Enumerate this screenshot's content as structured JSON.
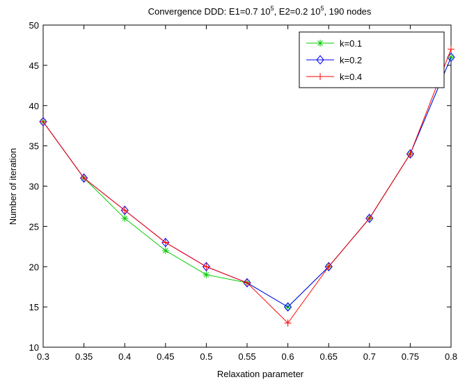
{
  "chart_data": {
    "type": "line",
    "title": {
      "prefix": "Convergence DDD: E1=0.7 10",
      "sup1": "5",
      "middle": ", E2=0.2 10",
      "sup2": "5",
      "suffix": ", 190 nodes"
    },
    "xlabel": "Relaxation parameter",
    "ylabel": "Number of iteration",
    "xlim": [
      0.3,
      0.8
    ],
    "ylim": [
      10,
      50
    ],
    "xticks": [
      0.3,
      0.35,
      0.4,
      0.45,
      0.5,
      0.55,
      0.6,
      0.65,
      0.7,
      0.75,
      0.8
    ],
    "xtick_labels": [
      "0.3",
      "0.35",
      "0.4",
      "0.45",
      "0.5",
      "0.55",
      "0.6",
      "0.65",
      "0.7",
      "0.75",
      "0.8"
    ],
    "yticks": [
      10,
      15,
      20,
      25,
      30,
      35,
      40,
      45,
      50
    ],
    "ytick_labels": [
      "10",
      "15",
      "20",
      "25",
      "30",
      "35",
      "40",
      "45",
      "50"
    ],
    "grid": false,
    "legend_position": "top-right",
    "x": [
      0.3,
      0.35,
      0.4,
      0.45,
      0.5,
      0.55,
      0.6,
      0.65,
      0.7,
      0.75,
      0.8
    ],
    "series": [
      {
        "name": "k=0.1",
        "color": "#00cc00",
        "marker": "asterisk",
        "values": [
          38,
          31,
          26,
          22,
          19,
          18,
          15,
          20,
          26,
          34,
          46
        ]
      },
      {
        "name": "k=0.2",
        "color": "#0000ff",
        "marker": "diamond",
        "values": [
          38,
          31,
          27,
          23,
          20,
          18,
          15,
          20,
          26,
          34,
          46
        ]
      },
      {
        "name": "k=0.4",
        "color": "#ff0000",
        "marker": "plus",
        "values": [
          38,
          31,
          27,
          23,
          20,
          18,
          13,
          20,
          26,
          34,
          47
        ]
      }
    ]
  }
}
